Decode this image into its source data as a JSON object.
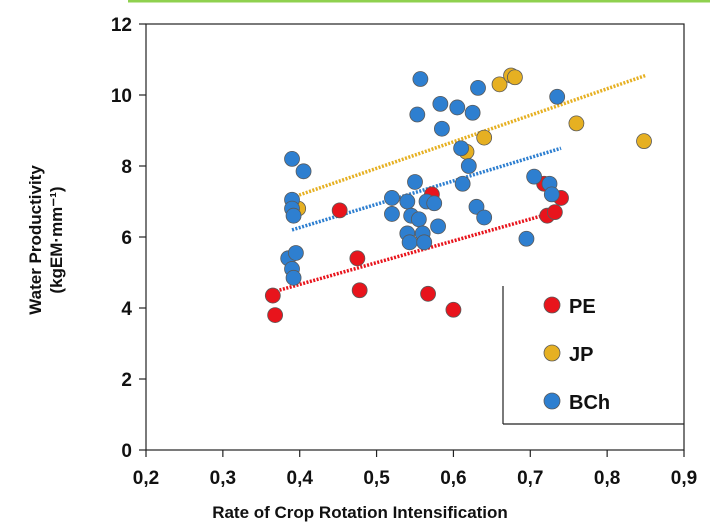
{
  "chart_data": {
    "type": "scatter",
    "title": "",
    "xlabel": "Rate of Crop Rotation Intensification",
    "ylabel_line1": "Water Productivity",
    "ylabel_line2": "(kgEM·mm⁻¹)",
    "xlim": [
      0.2,
      0.9
    ],
    "ylim": [
      0,
      12
    ],
    "x_ticks": [
      "0,2",
      "0,3",
      "0,4",
      "0,5",
      "0,6",
      "0,7",
      "0,8",
      "0,9"
    ],
    "y_ticks": [
      "0",
      "2",
      "4",
      "6",
      "8",
      "10",
      "12"
    ],
    "grid": false,
    "legend_position": "bottom-right",
    "accent_color": "#8fd14f",
    "series": [
      {
        "name": "PE",
        "color": "#e8141c",
        "points": [
          [
            0.365,
            4.35
          ],
          [
            0.368,
            3.8
          ],
          [
            0.452,
            6.75
          ],
          [
            0.475,
            5.4
          ],
          [
            0.478,
            4.5
          ],
          [
            0.567,
            4.4
          ],
          [
            0.572,
            7.2
          ],
          [
            0.6,
            3.95
          ],
          [
            0.718,
            7.5
          ],
          [
            0.722,
            6.6
          ],
          [
            0.732,
            6.7
          ],
          [
            0.74,
            7.1
          ]
        ],
        "trend": [
          [
            0.365,
            4.45
          ],
          [
            0.74,
            6.75
          ]
        ]
      },
      {
        "name": "JP",
        "color": "#e6b022",
        "points": [
          [
            0.398,
            6.8
          ],
          [
            0.617,
            8.4
          ],
          [
            0.64,
            8.8
          ],
          [
            0.66,
            10.3
          ],
          [
            0.675,
            10.55
          ],
          [
            0.68,
            10.5
          ],
          [
            0.76,
            9.2
          ],
          [
            0.848,
            8.7
          ]
        ],
        "trend": [
          [
            0.395,
            7.15
          ],
          [
            0.85,
            10.55
          ]
        ]
      },
      {
        "name": "BCh",
        "color": "#2e7fd0",
        "points": [
          [
            0.39,
            8.2
          ],
          [
            0.405,
            7.85
          ],
          [
            0.39,
            7.05
          ],
          [
            0.39,
            6.8
          ],
          [
            0.392,
            6.6
          ],
          [
            0.385,
            5.4
          ],
          [
            0.395,
            5.55
          ],
          [
            0.39,
            5.1
          ],
          [
            0.392,
            4.85
          ],
          [
            0.52,
            7.1
          ],
          [
            0.52,
            6.65
          ],
          [
            0.54,
            7.0
          ],
          [
            0.545,
            6.6
          ],
          [
            0.54,
            6.1
          ],
          [
            0.543,
            5.85
          ],
          [
            0.55,
            7.55
          ],
          [
            0.553,
            9.45
          ],
          [
            0.557,
            10.45
          ],
          [
            0.555,
            6.5
          ],
          [
            0.56,
            6.1
          ],
          [
            0.562,
            5.85
          ],
          [
            0.565,
            7.0
          ],
          [
            0.58,
            6.3
          ],
          [
            0.575,
            6.95
          ],
          [
            0.583,
            9.75
          ],
          [
            0.585,
            9.05
          ],
          [
            0.605,
            9.65
          ],
          [
            0.61,
            8.5
          ],
          [
            0.612,
            7.5
          ],
          [
            0.62,
            8.0
          ],
          [
            0.625,
            9.5
          ],
          [
            0.632,
            10.2
          ],
          [
            0.63,
            6.85
          ],
          [
            0.64,
            6.55
          ],
          [
            0.695,
            5.95
          ],
          [
            0.705,
            7.7
          ],
          [
            0.725,
            7.5
          ],
          [
            0.728,
            7.2
          ],
          [
            0.735,
            9.95
          ]
        ],
        "trend": [
          [
            0.39,
            6.2
          ],
          [
            0.74,
            8.5
          ]
        ]
      }
    ]
  }
}
